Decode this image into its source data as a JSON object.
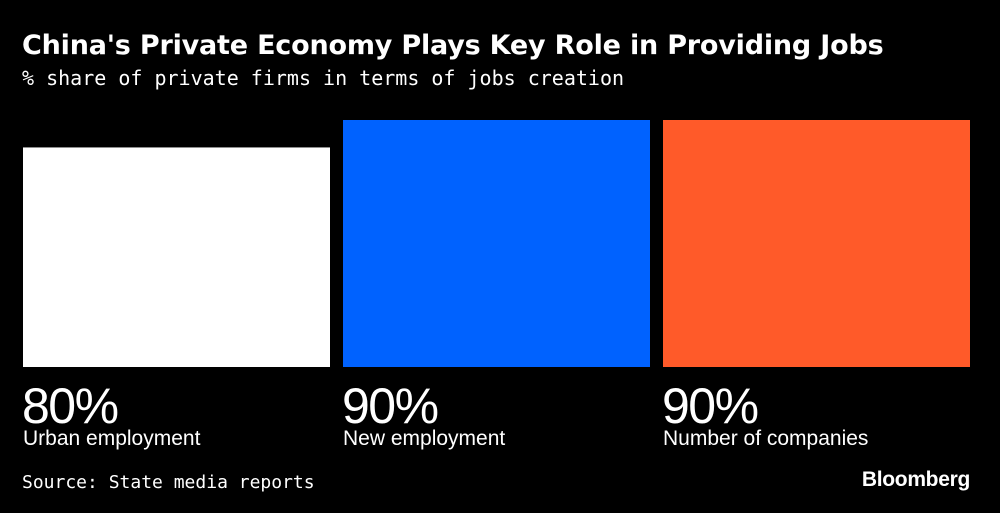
{
  "chart_data": {
    "type": "bar",
    "title": "China's Private Economy Plays Key Role in Providing Jobs",
    "subtitle": "% share of private firms in terms of jobs creation",
    "categories": [
      "Urban employment",
      "New employment",
      "Number of companies"
    ],
    "values": [
      80,
      90,
      90
    ],
    "value_labels": [
      "80%",
      "90%",
      "90%"
    ],
    "colors": [
      "#ffffff",
      "#0062ff",
      "#ff5a29"
    ],
    "ylim": [
      0,
      90
    ]
  },
  "footer": {
    "source": "Source: State media reports",
    "brand": "Bloomberg"
  }
}
